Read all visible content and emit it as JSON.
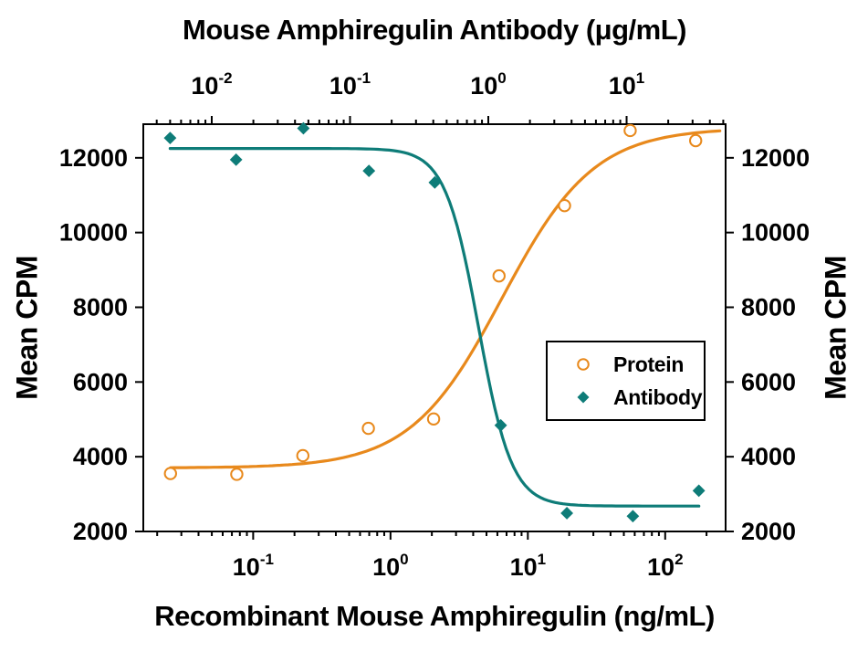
{
  "titles": {
    "top": "Mouse Amphiregulin Antibody (μg/mL)",
    "bottom": "Recombinant Mouse Amphiregulin (ng/mL)",
    "y_left": "Mean CPM",
    "y_right": "Mean CPM"
  },
  "legend": {
    "items": [
      {
        "label": "Protein",
        "marker": "open-circle",
        "color": "#E8891C"
      },
      {
        "label": "Antibody",
        "marker": "filled-diamond",
        "color": "#0E7C78"
      }
    ]
  },
  "colors": {
    "protein": "#E8891C",
    "antibody": "#0E7C78",
    "axis": "#000000",
    "background": "#ffffff"
  },
  "chart_data": {
    "type": "scatter",
    "subtype": "dose-response-4PL",
    "title": "Mouse Amphiregulin Antibody (μg/mL)",
    "xlabel_bottom": "Recombinant Mouse Amphiregulin (ng/mL)",
    "xlabel_top": "Mouse Amphiregulin Antibody (μg/mL)",
    "ylabel": "Mean CPM",
    "grid": false,
    "legend_position": "inside-right",
    "axes": {
      "x_bottom": {
        "scale": "log",
        "log_min": -1.8,
        "log_max": 2.44,
        "major_exponents": [
          -1,
          0,
          1,
          2
        ],
        "tick_label_base": "10"
      },
      "x_top": {
        "scale": "log",
        "log_min": -2.495,
        "log_max": 1.716,
        "major_exponents": [
          -2,
          -1,
          0,
          1
        ],
        "tick_label_base": "10"
      },
      "y": {
        "scale": "linear",
        "min": 2000,
        "max": 12900,
        "major_ticks": [
          2000,
          4000,
          6000,
          8000,
          10000,
          12000
        ]
      }
    },
    "series": [
      {
        "name": "Protein",
        "x_axis": "x_bottom",
        "units": "ng/mL",
        "marker": "open-circle",
        "color": "#E8891C",
        "points": [
          [
            0.025,
            3550
          ],
          [
            0.076,
            3530
          ],
          [
            0.23,
            4030
          ],
          [
            0.69,
            4760
          ],
          [
            2.06,
            5010
          ],
          [
            6.17,
            8840
          ],
          [
            18.5,
            10720
          ],
          [
            55.6,
            12730
          ],
          [
            166.7,
            12460
          ]
        ],
        "fit": {
          "min": 3700,
          "max": 12800,
          "ec50": 6.5,
          "hill": 1.3,
          "x_start": 0.025,
          "x_end": 250
        }
      },
      {
        "name": "Antibody",
        "x_axis": "x_top",
        "units": "μg/mL",
        "marker": "filled-diamond",
        "color": "#0E7C78",
        "points": [
          [
            0.005,
            12530
          ],
          [
            0.015,
            11950
          ],
          [
            0.046,
            12790
          ],
          [
            0.137,
            11650
          ],
          [
            0.41,
            11340
          ],
          [
            1.23,
            4840
          ],
          [
            3.7,
            2490
          ],
          [
            11.1,
            2410
          ],
          [
            33.3,
            3090
          ]
        ],
        "fit": {
          "min": 2680,
          "max": 12250,
          "ec50": 0.85,
          "hill": -3.6,
          "x_start": 0.005,
          "x_end": 33.3
        }
      }
    ]
  }
}
